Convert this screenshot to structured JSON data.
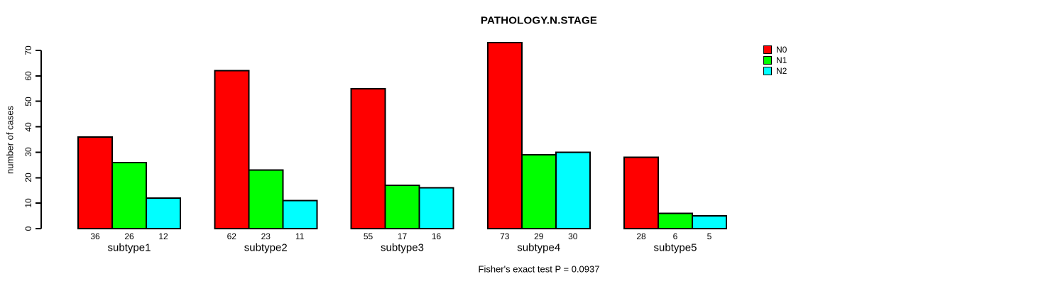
{
  "chart_data": {
    "type": "bar",
    "title": "PATHOLOGY.N.STAGE",
    "ylabel": "number of cases",
    "xlabel": "",
    "categories": [
      "subtype1",
      "subtype2",
      "subtype3",
      "subtype4",
      "subtype5"
    ],
    "series": [
      {
        "name": "N0",
        "color": "#ff0000",
        "values": [
          36,
          62,
          55,
          73,
          28
        ]
      },
      {
        "name": "N1",
        "color": "#00ff00",
        "values": [
          26,
          23,
          17,
          29,
          6
        ]
      },
      {
        "name": "N2",
        "color": "#00ffff",
        "values": [
          12,
          11,
          16,
          30,
          5
        ]
      }
    ],
    "ylim": [
      0,
      70
    ],
    "yticks": [
      0,
      10,
      20,
      30,
      40,
      50,
      60,
      70
    ],
    "grid": false,
    "legend_position": "top-right",
    "bar_border_color": "#000000",
    "value_labels_shown": true,
    "footer": "Fisher's exact test P = 0.0937"
  }
}
